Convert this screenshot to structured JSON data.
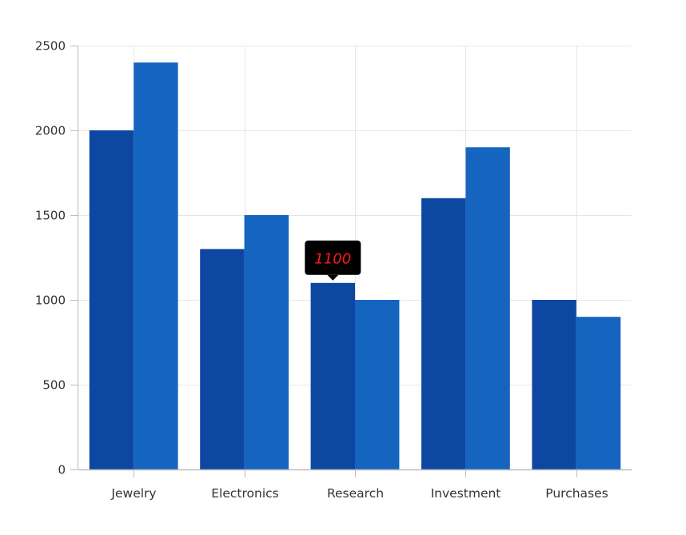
{
  "chart_data": {
    "type": "bar",
    "title": "",
    "xlabel": "",
    "ylabel": "",
    "categories": [
      "Jewelry",
      "Electronics",
      "Research",
      "Investment",
      "Purchases"
    ],
    "series": [
      {
        "values": [
          2000,
          1300,
          1100,
          1600,
          1000
        ],
        "color": "#0d47a1"
      },
      {
        "values": [
          2400,
          1500,
          1000,
          1900,
          900
        ],
        "color": "#1565c0"
      }
    ],
    "ylim": [
      0,
      2500
    ],
    "yticks": [
      0,
      500,
      1000,
      1500,
      2000,
      2500
    ],
    "grid": true,
    "legend": "none",
    "tooltip": {
      "series_index": 0,
      "category_index": 2,
      "label": "1100",
      "background": "#000000",
      "text_color": "#ff1a1a"
    },
    "gridline_color": "#e6e6e6",
    "axis_color": "#bdbdbd"
  }
}
